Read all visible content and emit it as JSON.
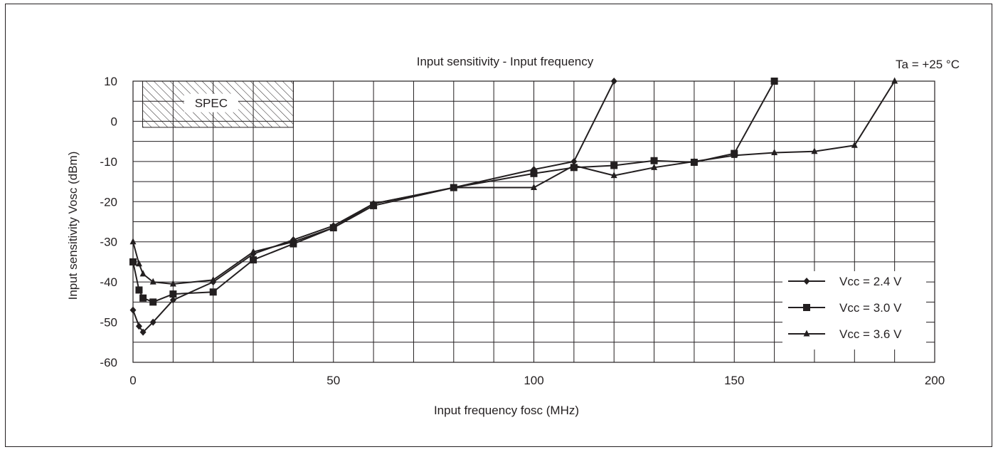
{
  "chart_data": {
    "type": "line",
    "title": "Input sensitivity - Input frequency",
    "annotation": "Ta = +25 °C",
    "xlabel": "Input frequency fosc (MHz)",
    "ylabel": "Input sensitivity Vosc (dBm)",
    "xlim": [
      0,
      200
    ],
    "ylim": [
      -60,
      10
    ],
    "x_ticks": [
      0,
      50,
      100,
      150,
      200
    ],
    "y_ticks": [
      10,
      0,
      -10,
      -20,
      -30,
      -40,
      -50,
      -60
    ],
    "grid": true,
    "legend_position": "bottom-right",
    "spec_region": {
      "label": "SPEC",
      "x_range": [
        2.4,
        40
      ],
      "y_range": [
        -1.5,
        10
      ]
    },
    "series": [
      {
        "name": "Vcc = 2.4 V",
        "marker": "diamond",
        "color": "#231f20",
        "points": [
          [
            0,
            -47
          ],
          [
            1.5,
            -51
          ],
          [
            2.5,
            -52.5
          ],
          [
            5,
            -50
          ],
          [
            10,
            -44.5
          ],
          [
            20,
            -40
          ],
          [
            30,
            -33
          ],
          [
            40,
            -29.5
          ],
          [
            50,
            -26
          ],
          [
            60,
            -20.5
          ],
          [
            80,
            -16.5
          ],
          [
            100,
            -12
          ],
          [
            110,
            -10
          ],
          [
            120,
            10
          ]
        ]
      },
      {
        "name": "Vcc = 3.0 V",
        "marker": "square",
        "color": "#231f20",
        "points": [
          [
            0,
            -35
          ],
          [
            1.5,
            -42
          ],
          [
            2.5,
            -44
          ],
          [
            5,
            -45
          ],
          [
            10,
            -43
          ],
          [
            20,
            -42.5
          ],
          [
            30,
            -34.5
          ],
          [
            40,
            -30.5
          ],
          [
            50,
            -26.5
          ],
          [
            60,
            -21
          ],
          [
            80,
            -16.5
          ],
          [
            100,
            -13
          ],
          [
            110,
            -11.5
          ],
          [
            120,
            -11
          ],
          [
            130,
            -9.8
          ],
          [
            140,
            -10.2
          ],
          [
            150,
            -8
          ],
          [
            160,
            10
          ]
        ]
      },
      {
        "name": "Vcc = 3.6 V",
        "marker": "triangle",
        "color": "#231f20",
        "points": [
          [
            0,
            -30
          ],
          [
            1.5,
            -35.5
          ],
          [
            2.5,
            -38
          ],
          [
            5,
            -40
          ],
          [
            10,
            -40.5
          ],
          [
            20,
            -39.5
          ],
          [
            30,
            -32.5
          ],
          [
            40,
            -30
          ],
          [
            50,
            -26.5
          ],
          [
            60,
            -20.5
          ],
          [
            80,
            -16.5
          ],
          [
            100,
            -16.5
          ],
          [
            110,
            -11
          ],
          [
            120,
            -13.5
          ],
          [
            130,
            -11.5
          ],
          [
            140,
            -10
          ],
          [
            150,
            -8.5
          ],
          [
            160,
            -7.8
          ],
          [
            170,
            -7.5
          ],
          [
            180,
            -6
          ],
          [
            190,
            10
          ]
        ]
      }
    ]
  }
}
